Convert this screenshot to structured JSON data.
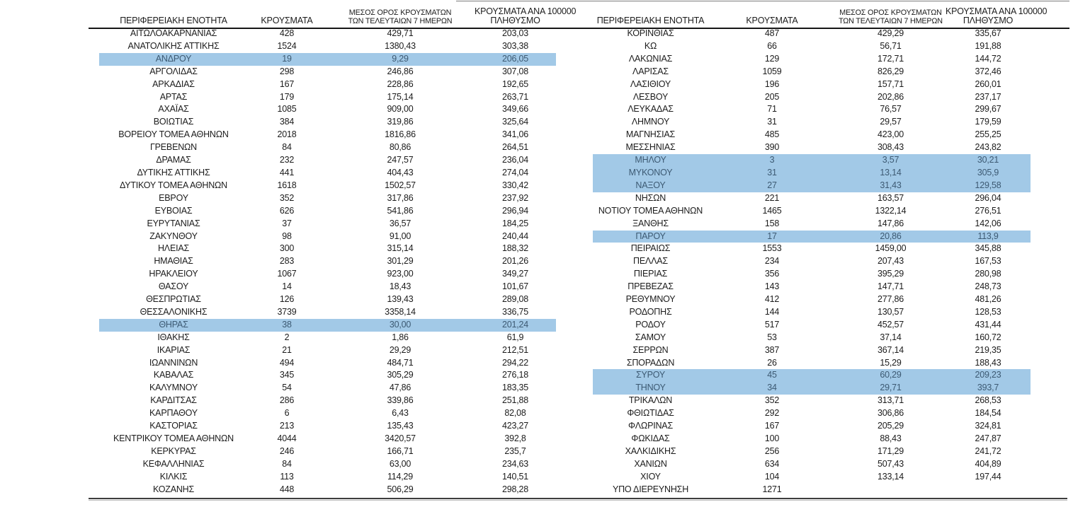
{
  "columns": {
    "region": "ΠΕΡΙΦΕΡΕΙΑΚΗ ΕΝΟΤΗΤΑ",
    "cases": "ΚΡΟΥΣΜΑΤΑ",
    "avg7_line1": "ΜΕΣΟΣ ΟΡΟΣ ΚΡΟΥΣΜΑΤΩΝ",
    "avg7_line2": "ΤΩΝ ΤΕΛΕΥΤΑΙΩΝ 7 ΗΜΕΡΩΝ",
    "per100k_line1": "ΚΡΟΥΣΜΑΤΑ ΑΝΑ 100000",
    "per100k_line2": "ΠΛΗΘΥΣΜΟ"
  },
  "colors": {
    "highlight_background": "#a2c9e7",
    "highlight_text": "#3d5a73",
    "text": "#1c1c1c"
  },
  "left_table": {
    "rows": [
      {
        "region": "ΑΙΤΩΛΟΑΚΑΡΝΑΝΙΑΣ",
        "cases": "428",
        "avg7": "429,71",
        "per100k": "203,03",
        "highlight": false
      },
      {
        "region": "ΑΝΑΤΟΛΙΚΗΣ ΑΤΤΙΚΗΣ",
        "cases": "1524",
        "avg7": "1380,43",
        "per100k": "303,38",
        "highlight": false
      },
      {
        "region": "ΑΝΔΡΟΥ",
        "cases": "19",
        "avg7": "9,29",
        "per100k": "206,05",
        "highlight": true
      },
      {
        "region": "ΑΡΓΟΛΙΔΑΣ",
        "cases": "298",
        "avg7": "246,86",
        "per100k": "307,08",
        "highlight": false
      },
      {
        "region": "ΑΡΚΑΔΙΑΣ",
        "cases": "167",
        "avg7": "228,86",
        "per100k": "192,65",
        "highlight": false
      },
      {
        "region": "ΑΡΤΑΣ",
        "cases": "179",
        "avg7": "175,14",
        "per100k": "263,71",
        "highlight": false
      },
      {
        "region": "ΑΧΑΪΑΣ",
        "cases": "1085",
        "avg7": "909,00",
        "per100k": "349,66",
        "highlight": false
      },
      {
        "region": "ΒΟΙΩΤΙΑΣ",
        "cases": "384",
        "avg7": "319,86",
        "per100k": "325,64",
        "highlight": false
      },
      {
        "region": "ΒΟΡΕΙΟΥ ΤΟΜΕΑ ΑΘΗΝΩΝ",
        "cases": "2018",
        "avg7": "1816,86",
        "per100k": "341,06",
        "highlight": false
      },
      {
        "region": "ΓΡΕΒΕΝΩΝ",
        "cases": "84",
        "avg7": "80,86",
        "per100k": "264,51",
        "highlight": false
      },
      {
        "region": "ΔΡΑΜΑΣ",
        "cases": "232",
        "avg7": "247,57",
        "per100k": "236,04",
        "highlight": false
      },
      {
        "region": "ΔΥΤΙΚΗΣ ΑΤΤΙΚΗΣ",
        "cases": "441",
        "avg7": "404,43",
        "per100k": "274,04",
        "highlight": false
      },
      {
        "region": "ΔΥΤΙΚΟΥ ΤΟΜΕΑ ΑΘΗΝΩΝ",
        "cases": "1618",
        "avg7": "1502,57",
        "per100k": "330,42",
        "highlight": false
      },
      {
        "region": "ΕΒΡΟΥ",
        "cases": "352",
        "avg7": "317,86",
        "per100k": "237,92",
        "highlight": false
      },
      {
        "region": "ΕΥΒΟΙΑΣ",
        "cases": "626",
        "avg7": "541,86",
        "per100k": "296,94",
        "highlight": false
      },
      {
        "region": "ΕΥΡΥΤΑΝΙΑΣ",
        "cases": "37",
        "avg7": "36,57",
        "per100k": "184,25",
        "highlight": false
      },
      {
        "region": "ΖΑΚΥΝΘΟΥ",
        "cases": "98",
        "avg7": "91,00",
        "per100k": "240,44",
        "highlight": false
      },
      {
        "region": "ΗΛΕΙΑΣ",
        "cases": "300",
        "avg7": "315,14",
        "per100k": "188,32",
        "highlight": false
      },
      {
        "region": "ΗΜΑΘΙΑΣ",
        "cases": "283",
        "avg7": "301,29",
        "per100k": "201,26",
        "highlight": false
      },
      {
        "region": "ΗΡΑΚΛΕΙΟΥ",
        "cases": "1067",
        "avg7": "923,00",
        "per100k": "349,27",
        "highlight": false
      },
      {
        "region": "ΘΑΣΟΥ",
        "cases": "14",
        "avg7": "18,43",
        "per100k": "101,67",
        "highlight": false
      },
      {
        "region": "ΘΕΣΠΡΩΤΙΑΣ",
        "cases": "126",
        "avg7": "139,43",
        "per100k": "289,08",
        "highlight": false
      },
      {
        "region": "ΘΕΣΣΑΛΟΝΙΚΗΣ",
        "cases": "3739",
        "avg7": "3358,14",
        "per100k": "336,75",
        "highlight": false
      },
      {
        "region": "ΘΗΡΑΣ",
        "cases": "38",
        "avg7": "30,00",
        "per100k": "201,24",
        "highlight": true
      },
      {
        "region": "ΙΘΑΚΗΣ",
        "cases": "2",
        "avg7": "1,86",
        "per100k": "61,9",
        "highlight": false
      },
      {
        "region": "ΙΚΑΡΙΑΣ",
        "cases": "21",
        "avg7": "29,29",
        "per100k": "212,51",
        "highlight": false
      },
      {
        "region": "ΙΩΑΝΝΙΝΩΝ",
        "cases": "494",
        "avg7": "484,71",
        "per100k": "294,22",
        "highlight": false
      },
      {
        "region": "ΚΑΒΑΛΑΣ",
        "cases": "345",
        "avg7": "305,29",
        "per100k": "276,18",
        "highlight": false
      },
      {
        "region": "ΚΑΛΥΜΝΟΥ",
        "cases": "54",
        "avg7": "47,86",
        "per100k": "183,35",
        "highlight": false
      },
      {
        "region": "ΚΑΡΔΙΤΣΑΣ",
        "cases": "286",
        "avg7": "339,86",
        "per100k": "251,88",
        "highlight": false
      },
      {
        "region": "ΚΑΡΠΑΘΟΥ",
        "cases": "6",
        "avg7": "6,43",
        "per100k": "82,08",
        "highlight": false
      },
      {
        "region": "ΚΑΣΤΟΡΙΑΣ",
        "cases": "213",
        "avg7": "135,43",
        "per100k": "423,27",
        "highlight": false
      },
      {
        "region": "ΚΕΝΤΡΙΚΟΥ ΤΟΜΕΑ ΑΘΗΝΩΝ",
        "cases": "4044",
        "avg7": "3420,57",
        "per100k": "392,8",
        "highlight": false
      },
      {
        "region": "ΚΕΡΚΥΡΑΣ",
        "cases": "246",
        "avg7": "166,71",
        "per100k": "235,7",
        "highlight": false
      },
      {
        "region": "ΚΕΦΑΛΛΗΝΙΑΣ",
        "cases": "84",
        "avg7": "63,00",
        "per100k": "234,63",
        "highlight": false
      },
      {
        "region": "ΚΙΛΚΙΣ",
        "cases": "113",
        "avg7": "114,29",
        "per100k": "140,51",
        "highlight": false
      },
      {
        "region": "ΚΟΖΑΝΗΣ",
        "cases": "448",
        "avg7": "506,29",
        "per100k": "298,28",
        "highlight": false
      }
    ]
  },
  "right_table": {
    "rows": [
      {
        "region": "ΚΟΡΙΝΘΙΑΣ",
        "cases": "487",
        "avg7": "429,29",
        "per100k": "335,67",
        "highlight": false
      },
      {
        "region": "ΚΩ",
        "cases": "66",
        "avg7": "56,71",
        "per100k": "191,88",
        "highlight": false
      },
      {
        "region": "ΛΑΚΩΝΙΑΣ",
        "cases": "129",
        "avg7": "172,71",
        "per100k": "144,72",
        "highlight": false
      },
      {
        "region": "ΛΑΡΙΣΑΣ",
        "cases": "1059",
        "avg7": "826,29",
        "per100k": "372,46",
        "highlight": false
      },
      {
        "region": "ΛΑΣΙΘΙΟΥ",
        "cases": "196",
        "avg7": "157,71",
        "per100k": "260,01",
        "highlight": false
      },
      {
        "region": "ΛΕΣΒΟΥ",
        "cases": "205",
        "avg7": "202,86",
        "per100k": "237,17",
        "highlight": false
      },
      {
        "region": "ΛΕΥΚΑΔΑΣ",
        "cases": "71",
        "avg7": "76,57",
        "per100k": "299,67",
        "highlight": false
      },
      {
        "region": "ΛΗΜΝΟΥ",
        "cases": "31",
        "avg7": "29,57",
        "per100k": "179,59",
        "highlight": false
      },
      {
        "region": "ΜΑΓΝΗΣΙΑΣ",
        "cases": "485",
        "avg7": "423,00",
        "per100k": "255,25",
        "highlight": false
      },
      {
        "region": "ΜΕΣΣΗΝΙΑΣ",
        "cases": "390",
        "avg7": "308,43",
        "per100k": "243,82",
        "highlight": false
      },
      {
        "region": "ΜΗΛΟΥ",
        "cases": "3",
        "avg7": "3,57",
        "per100k": "30,21",
        "highlight": true
      },
      {
        "region": "ΜΥΚΟΝΟΥ",
        "cases": "31",
        "avg7": "13,14",
        "per100k": "305,9",
        "highlight": true
      },
      {
        "region": "ΝΑΞΟΥ",
        "cases": "27",
        "avg7": "31,43",
        "per100k": "129,58",
        "highlight": true
      },
      {
        "region": "ΝΗΣΩΝ",
        "cases": "221",
        "avg7": "163,57",
        "per100k": "296,04",
        "highlight": false
      },
      {
        "region": "ΝΟΤΙΟΥ ΤΟΜΕΑ ΑΘΗΝΩΝ",
        "cases": "1465",
        "avg7": "1322,14",
        "per100k": "276,51",
        "highlight": false
      },
      {
        "region": "ΞΑΝΘΗΣ",
        "cases": "158",
        "avg7": "147,86",
        "per100k": "142,06",
        "highlight": false
      },
      {
        "region": "ΠΑΡΟΥ",
        "cases": "17",
        "avg7": "20,86",
        "per100k": "113,9",
        "highlight": true
      },
      {
        "region": "ΠΕΙΡΑΙΩΣ",
        "cases": "1553",
        "avg7": "1459,00",
        "per100k": "345,88",
        "highlight": false
      },
      {
        "region": "ΠΕΛΛΑΣ",
        "cases": "234",
        "avg7": "207,43",
        "per100k": "167,53",
        "highlight": false
      },
      {
        "region": "ΠΙΕΡΙΑΣ",
        "cases": "356",
        "avg7": "395,29",
        "per100k": "280,98",
        "highlight": false
      },
      {
        "region": "ΠΡΕΒΕΖΑΣ",
        "cases": "143",
        "avg7": "147,71",
        "per100k": "248,73",
        "highlight": false
      },
      {
        "region": "ΡΕΘΥΜΝΟΥ",
        "cases": "412",
        "avg7": "277,86",
        "per100k": "481,26",
        "highlight": false
      },
      {
        "region": "ΡΟΔΟΠΗΣ",
        "cases": "144",
        "avg7": "130,57",
        "per100k": "128,53",
        "highlight": false
      },
      {
        "region": "ΡΟΔΟΥ",
        "cases": "517",
        "avg7": "452,57",
        "per100k": "431,44",
        "highlight": false
      },
      {
        "region": "ΣΑΜΟΥ",
        "cases": "53",
        "avg7": "37,14",
        "per100k": "160,72",
        "highlight": false
      },
      {
        "region": "ΣΕΡΡΩΝ",
        "cases": "387",
        "avg7": "367,14",
        "per100k": "219,35",
        "highlight": false
      },
      {
        "region": "ΣΠΟΡΑΔΩΝ",
        "cases": "26",
        "avg7": "15,29",
        "per100k": "188,43",
        "highlight": false
      },
      {
        "region": "ΣΥΡΟΥ",
        "cases": "45",
        "avg7": "60,29",
        "per100k": "209,23",
        "highlight": true
      },
      {
        "region": "ΤΗΝΟΥ",
        "cases": "34",
        "avg7": "29,71",
        "per100k": "393,7",
        "highlight": true
      },
      {
        "region": "ΤΡΙΚΑΛΩΝ",
        "cases": "352",
        "avg7": "313,71",
        "per100k": "268,53",
        "highlight": false
      },
      {
        "region": "ΦΘΙΩΤΙΔΑΣ",
        "cases": "292",
        "avg7": "306,86",
        "per100k": "184,54",
        "highlight": false
      },
      {
        "region": "ΦΛΩΡΙΝΑΣ",
        "cases": "167",
        "avg7": "205,29",
        "per100k": "324,81",
        "highlight": false
      },
      {
        "region": "ΦΩΚΙΔΑΣ",
        "cases": "100",
        "avg7": "88,43",
        "per100k": "247,87",
        "highlight": false
      },
      {
        "region": "ΧΑΛΚΙΔΙΚΗΣ",
        "cases": "256",
        "avg7": "171,29",
        "per100k": "241,72",
        "highlight": false
      },
      {
        "region": "ΧΑΝΙΩΝ",
        "cases": "634",
        "avg7": "507,43",
        "per100k": "404,89",
        "highlight": false
      },
      {
        "region": "ΧΙΟΥ",
        "cases": "104",
        "avg7": "133,14",
        "per100k": "197,44",
        "highlight": false
      },
      {
        "region": "ΥΠΟ ΔΙΕΡΕΥΝΗΣΗ",
        "cases": "1271",
        "avg7": "",
        "per100k": "",
        "highlight": false
      }
    ]
  }
}
